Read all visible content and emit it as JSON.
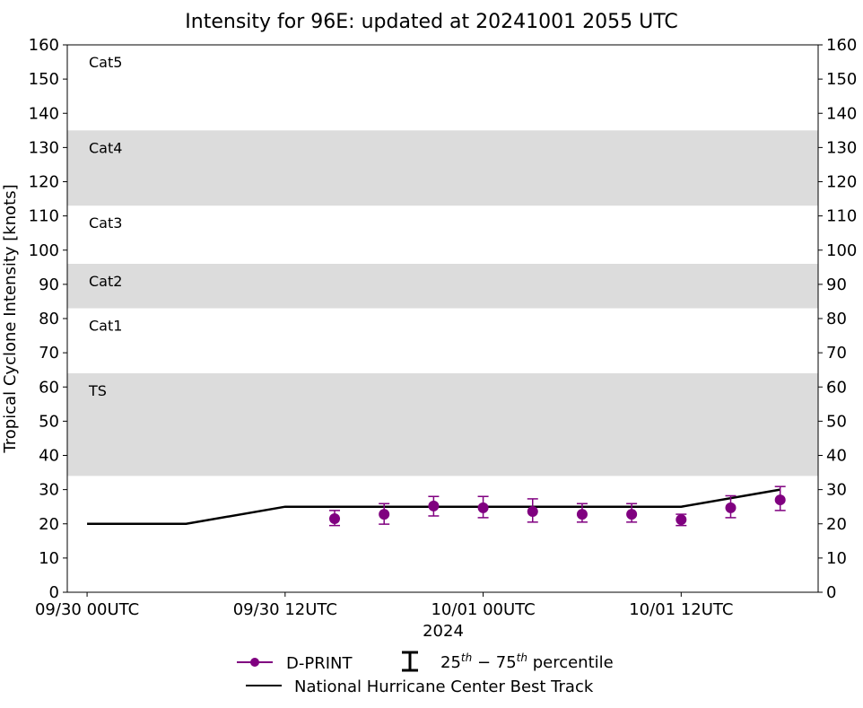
{
  "chart_data": {
    "type": "line",
    "title": "Intensity for 96E: updated at 20241001 2055 UTC",
    "ylabel": "Tropical Cyclone Intensity [knots]",
    "xlabel": "2024",
    "ylim": [
      0,
      160
    ],
    "yticks": [
      0,
      10,
      20,
      30,
      40,
      50,
      60,
      70,
      80,
      90,
      100,
      110,
      120,
      130,
      140,
      150,
      160
    ],
    "xlim_hours": [
      -1.2,
      44.3
    ],
    "xticks": [
      {
        "hour": 0,
        "label": "09/30 00UTC"
      },
      {
        "hour": 12,
        "label": "09/30 12UTC"
      },
      {
        "hour": 24,
        "label": "10/01 00UTC"
      },
      {
        "hour": 36,
        "label": "10/01 12UTC"
      }
    ],
    "bands": [
      {
        "label": "TS",
        "from": 34,
        "to": 64,
        "shaded": true
      },
      {
        "label": "Cat1",
        "from": 64,
        "to": 83,
        "shaded": false
      },
      {
        "label": "Cat2",
        "from": 83,
        "to": 96,
        "shaded": true
      },
      {
        "label": "Cat3",
        "from": 96,
        "to": 113,
        "shaded": false
      },
      {
        "label": "Cat4",
        "from": 113,
        "to": 135,
        "shaded": true
      },
      {
        "label": "Cat5",
        "from": 135,
        "to": 160,
        "shaded": false
      }
    ],
    "series": [
      {
        "name": "National Hurricane Center Best Track",
        "color": "#000000",
        "x_hours": [
          0,
          6,
          12,
          18,
          24,
          30,
          36,
          42
        ],
        "values": [
          20,
          20,
          25,
          25,
          25,
          25,
          25,
          30
        ]
      },
      {
        "name": "D-PRINT",
        "color": "#800080",
        "x_hours": [
          15,
          18,
          21,
          24,
          27,
          30,
          33,
          36,
          39,
          42
        ],
        "values": [
          21.5,
          22.8,
          25.2,
          24.7,
          23.6,
          22.8,
          22.8,
          21.2,
          24.7,
          27.0
        ],
        "p25": [
          19.5,
          19.9,
          22.3,
          21.8,
          20.5,
          20.5,
          20.5,
          19.5,
          21.8,
          23.9
        ],
        "p75": [
          23.9,
          25.9,
          28.0,
          28.0,
          27.3,
          25.9,
          25.9,
          22.8,
          28.2,
          30.9
        ]
      }
    ],
    "legend": {
      "placement": "bottom",
      "dprint": "D-PRINT",
      "percentile_base1": "25",
      "percentile_sup1": "th",
      "percentile_mid": " − 75",
      "percentile_sup2": "th",
      "percentile_tail": " percentile",
      "besttrack": "National Hurricane Center Best Track"
    }
  }
}
